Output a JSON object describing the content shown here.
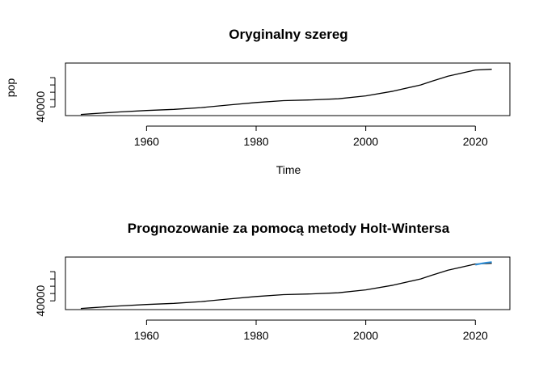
{
  "chart_data": [
    {
      "type": "line",
      "title": "Oryginalny szereg",
      "xlabel": "Time",
      "ylabel": "pop",
      "xlim": [
        1945.2,
        2026.3
      ],
      "ylim": [
        28000,
        100000
      ],
      "x_ticks": [
        1960,
        1980,
        2000,
        2020
      ],
      "y_ticks": [
        40000,
        50000,
        60000,
        70000,
        80000
      ],
      "y_tick_labels": [
        "40000",
        "",
        "",
        "",
        ""
      ],
      "grid": false,
      "series": [
        {
          "color": "#000000",
          "x": [
            1948,
            1950,
            1955,
            1960,
            1965,
            1970,
            1975,
            1980,
            1985,
            1990,
            1995,
            2000,
            2005,
            2010,
            2012,
            2015,
            2020,
            2023
          ],
          "y": [
            29500,
            30500,
            33000,
            35000,
            36500,
            39000,
            42500,
            46000,
            48500,
            49500,
            51000,
            55000,
            61500,
            70000,
            75000,
            82000,
            90500,
            91500
          ]
        }
      ]
    },
    {
      "type": "line",
      "title": "Prognozowanie za pomocą metody Holt-Wintersa",
      "xlabel": "",
      "ylabel": "",
      "xlim": [
        1945.2,
        2026.3
      ],
      "ylim": [
        28000,
        100000
      ],
      "x_ticks": [
        1960,
        1980,
        2000,
        2020
      ],
      "y_ticks": [
        40000,
        50000,
        60000,
        70000,
        80000
      ],
      "y_tick_labels": [
        "40000",
        "",
        "",
        "",
        ""
      ],
      "grid": false,
      "series": [
        {
          "color": "#000000",
          "x": [
            1948,
            1950,
            1955,
            1960,
            1965,
            1970,
            1975,
            1980,
            1985,
            1990,
            1995,
            2000,
            2005,
            2010,
            2012,
            2015,
            2020,
            2023
          ],
          "y": [
            29500,
            30500,
            33000,
            35000,
            36500,
            39000,
            42500,
            46000,
            48500,
            49500,
            51000,
            55000,
            61500,
            70000,
            75000,
            82000,
            90500,
            91500
          ]
        },
        {
          "color": "#2f8fd8",
          "x": [
            2020,
            2021,
            2022,
            2023
          ],
          "y": [
            89500,
            91000,
            92300,
            93000
          ]
        }
      ]
    }
  ]
}
